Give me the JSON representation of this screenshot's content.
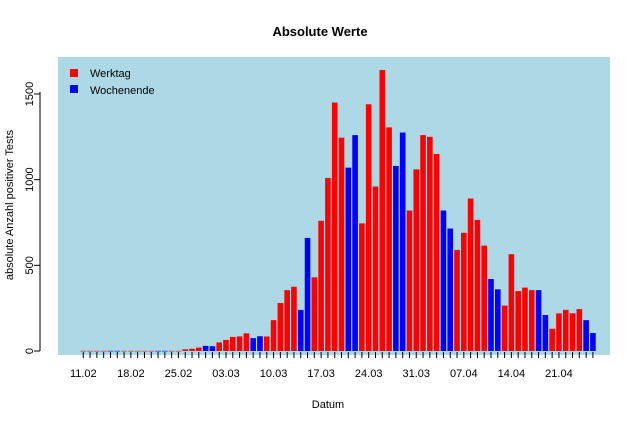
{
  "chart_data": {
    "type": "bar",
    "title": "Absolute Werte",
    "xlabel": "Datum",
    "ylabel": "absolute Anzahl positiver Tests",
    "ylim": [
      0,
      1700
    ],
    "yticks": [
      0,
      500,
      1000,
      1500
    ],
    "x_tick_labels": [
      "11.02",
      "18.02",
      "25.02",
      "03.03",
      "10.03",
      "17.03",
      "24.03",
      "31.03",
      "07.04",
      "14.04",
      "21.04"
    ],
    "background_color": "#add8e6",
    "legend": {
      "position": "top-left",
      "entries": [
        {
          "label": "Werktag",
          "color": "#ff0000"
        },
        {
          "label": "Wochenende",
          "color": "#0000ff"
        }
      ]
    },
    "colors": {
      "weekday": "#ff0000",
      "weekend": "#0000ff"
    },
    "series": [
      {
        "name": "Werktag",
        "color": "#ff0000"
      },
      {
        "name": "Wochenende",
        "color": "#0000ff"
      }
    ],
    "categories": [
      "11.02",
      "12.02",
      "13.02",
      "14.02",
      "15.02",
      "16.02",
      "17.02",
      "18.02",
      "19.02",
      "20.02",
      "21.02",
      "22.02",
      "23.02",
      "24.02",
      "25.02",
      "26.02",
      "27.02",
      "28.02",
      "29.02",
      "01.03",
      "02.03",
      "03.03",
      "04.03",
      "05.03",
      "06.03",
      "07.03",
      "08.03",
      "09.03",
      "10.03",
      "11.03",
      "12.03",
      "13.03",
      "14.03",
      "15.03",
      "16.03",
      "17.03",
      "18.03",
      "19.03",
      "20.03",
      "21.03",
      "22.03",
      "23.03",
      "24.03",
      "25.03",
      "26.03",
      "27.03",
      "28.03",
      "29.03",
      "30.03",
      "31.03",
      "01.04",
      "02.04",
      "03.04",
      "04.04",
      "05.04",
      "06.04",
      "07.04",
      "08.04",
      "09.04",
      "10.04",
      "11.04",
      "12.04",
      "13.04",
      "14.04",
      "15.04",
      "16.04",
      "17.04",
      "18.04",
      "19.04",
      "20.04",
      "21.04",
      "22.04",
      "23.04",
      "24.04",
      "25.04",
      "26.04"
    ],
    "values": [
      1,
      1,
      1,
      1,
      1,
      1,
      1,
      1,
      1,
      1,
      1,
      1,
      1,
      1,
      1,
      10,
      13,
      20,
      30,
      28,
      50,
      65,
      82,
      85,
      103,
      75,
      86,
      85,
      180,
      280,
      355,
      375,
      240,
      660,
      430,
      760,
      1010,
      1450,
      1245,
      1070,
      1260,
      745,
      1440,
      960,
      1640,
      1305,
      1080,
      1275,
      820,
      1060,
      1260,
      1250,
      1150,
      820,
      715,
      590,
      690,
      890,
      765,
      615,
      420,
      360,
      265,
      565,
      350,
      370,
      355,
      355,
      210,
      130,
      220,
      240,
      220,
      245,
      180,
      105
    ],
    "bar_types": [
      "w",
      "w",
      "w",
      "w",
      "e",
      "e",
      "w",
      "w",
      "w",
      "w",
      "w",
      "e",
      "e",
      "w",
      "w",
      "w",
      "w",
      "w",
      "e",
      "e",
      "w",
      "w",
      "w",
      "w",
      "w",
      "e",
      "e",
      "w",
      "w",
      "w",
      "w",
      "w",
      "e",
      "e",
      "w",
      "w",
      "w",
      "w",
      "w",
      "e",
      "e",
      "w",
      "w",
      "w",
      "w",
      "w",
      "e",
      "e",
      "w",
      "w",
      "w",
      "w",
      "w",
      "e",
      "e",
      "w",
      "w",
      "w",
      "w",
      "w",
      "e",
      "e",
      "w",
      "w",
      "w",
      "w",
      "w",
      "e",
      "e",
      "w",
      "w",
      "w",
      "w",
      "w",
      "e",
      "e"
    ]
  }
}
